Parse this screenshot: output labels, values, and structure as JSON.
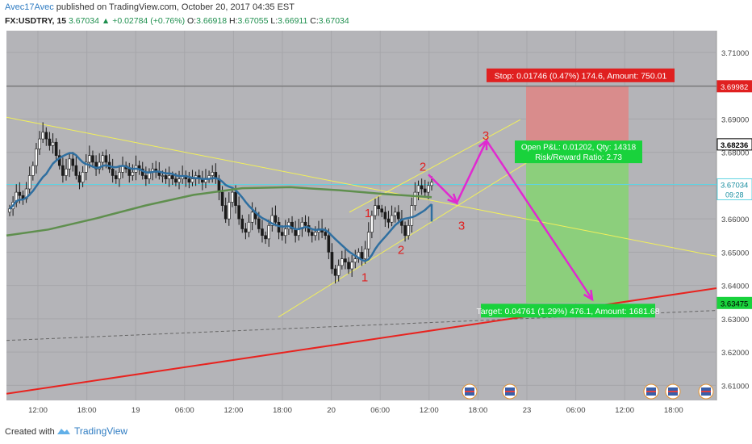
{
  "header": {
    "author": "Avec17Avec",
    "published": " published on TradingView.com, October 20, 2017 04:35 EST",
    "symbol": "FX:USDTRY, 15",
    "last": "3.67034",
    "change": "+0.02784 (+0.76%)",
    "open_label": "O:",
    "open": "3.66918",
    "high_label": "H:",
    "high": "3.67055",
    "low_label": "L:",
    "low": "3.66911",
    "close_label": "C:",
    "close": "3.67034"
  },
  "footer": {
    "created_with": "Created with",
    "brand": "TradingView"
  },
  "colors": {
    "plot_bg": "#b4b4b8",
    "candle": "#1a1a1a",
    "ma_short": "#2f6fa0",
    "ma_long": "#5f8f4e",
    "trend_yellow": "#f2f05a",
    "support_red": "#e8231f",
    "arrow_magenta": "#e02ad0",
    "stop_zone": "#d98c8c",
    "target_zone": "#8ccf7c",
    "label_red": "#e02020",
    "label_green": "#19d23c",
    "price_line_cyan": "#5fd3e2"
  },
  "chart_data": {
    "type": "candlestick",
    "title": "",
    "ylim": [
      3.6055,
      3.7165
    ],
    "y_ticks": [
      "3.71000",
      "3.70000",
      "3.69000",
      "3.68000",
      "3.67000",
      "3.66000",
      "3.65000",
      "3.64000",
      "3.63000",
      "3.62000",
      "3.61000"
    ],
    "x_ticks": [
      "12:00",
      "18:00",
      "19",
      "06:00",
      "12:00",
      "18:00",
      "20",
      "06:00",
      "12:00",
      "18:00",
      "23",
      "06:00",
      "12:00",
      "18:00"
    ],
    "price_markers": [
      {
        "value": 3.69982,
        "label": "3.69982",
        "style": "red"
      },
      {
        "value": 3.68236,
        "label": "3.68236",
        "style": "black"
      },
      {
        "value": 3.67034,
        "label": "3.67034",
        "style": "cyan",
        "sublabel": "09:28"
      },
      {
        "value": 3.63475,
        "label": "3.63475",
        "style": "green"
      }
    ],
    "position": {
      "entry": 3.68236,
      "stop": 3.69982,
      "target": 3.63475,
      "stop_label": "Stop: 0.01746 (0.47%) 174.6, Amount: 750.01",
      "pl_label": "Open P&L: 0.01202, Qty: 14318",
      "rr_label": "Risk/Reward Ratio: 2.73",
      "target_label": "Target: 0.04761 (1.29%) 476.1, Amount: 1681.68"
    },
    "annotations": [
      {
        "text": "1",
        "y": 3.6605
      },
      {
        "text": "2",
        "y": 3.6745
      },
      {
        "text": "3",
        "y": 3.6838
      },
      {
        "text": "1",
        "y": 3.6412
      },
      {
        "text": "2",
        "y": 3.6495
      },
      {
        "text": "3",
        "y": 3.6568
      }
    ],
    "closes": [
      3.663,
      3.665,
      3.668,
      3.667,
      3.666,
      3.669,
      3.673,
      3.676,
      3.681,
      3.684,
      3.686,
      3.684,
      3.682,
      3.683,
      3.679,
      3.676,
      3.673,
      3.675,
      3.678,
      3.676,
      3.673,
      3.671,
      3.674,
      3.677,
      3.679,
      3.677,
      3.675,
      3.677,
      3.679,
      3.677,
      3.675,
      3.673,
      3.672,
      3.674,
      3.676,
      3.675,
      3.673,
      3.674,
      3.676,
      3.675,
      3.673,
      3.672,
      3.674,
      3.675,
      3.674,
      3.673,
      3.673,
      3.672,
      3.673,
      3.672,
      3.671,
      3.672,
      3.673,
      3.672,
      3.671,
      3.672,
      3.673,
      3.672,
      3.671,
      3.672,
      3.673,
      3.674,
      3.672,
      3.668,
      3.664,
      3.66,
      3.665,
      3.668,
      3.664,
      3.66,
      3.657,
      3.656,
      3.659,
      3.662,
      3.66,
      3.657,
      3.655,
      3.654,
      3.658,
      3.661,
      3.659,
      3.656,
      3.655,
      3.657,
      3.659,
      3.657,
      3.655,
      3.657,
      3.659,
      3.658,
      3.656,
      3.655,
      3.656,
      3.657,
      3.656,
      3.655,
      3.65,
      3.645,
      3.643,
      3.646,
      3.648,
      3.647,
      3.645,
      3.647,
      3.648,
      3.65,
      3.648,
      3.651,
      3.656,
      3.661,
      3.664,
      3.663,
      3.662,
      3.66,
      3.659,
      3.661,
      3.662,
      3.66,
      3.658,
      3.655,
      3.658,
      3.664,
      3.668,
      3.67,
      3.669,
      3.668,
      3.67,
      3.671
    ]
  }
}
